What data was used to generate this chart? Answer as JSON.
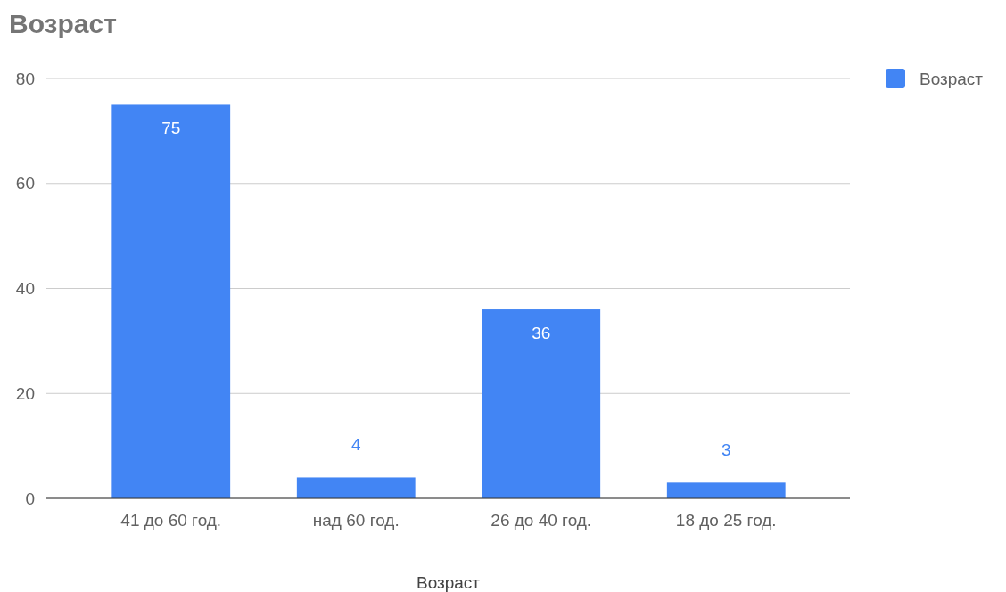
{
  "chart_data": {
    "type": "bar",
    "title": "Возраст",
    "xlabel": "Возраст",
    "categories": [
      "41 до 60 год.",
      "над 60 год.",
      "26 до 40 год.",
      "18 до 25 год."
    ],
    "series": [
      {
        "name": "Возраст",
        "color": "#4285f4",
        "values": [
          75,
          4,
          36,
          3
        ]
      }
    ],
    "ylim": [
      0,
      80
    ],
    "yticks": [
      0,
      20,
      40,
      60,
      80
    ],
    "grid": "y",
    "legend": "top right",
    "data_labels": true
  }
}
